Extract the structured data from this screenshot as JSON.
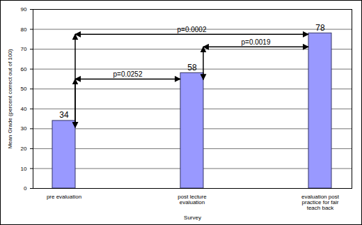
{
  "chart_data": {
    "type": "bar",
    "categories": [
      "pre evaluation",
      "post lecture evaluation",
      "evaluation post practice for fair teach back"
    ],
    "values": [
      34,
      58,
      78
    ],
    "color": "#9999ff",
    "xlabel": "Survey",
    "ylabel": "Mean Grade (percent correct out of 100)",
    "ylim": [
      0,
      90
    ],
    "yticks": [
      0,
      10,
      20,
      30,
      40,
      50,
      60,
      70,
      80,
      90
    ],
    "grid": true,
    "data_labels": true,
    "annotations": [
      {
        "text": "p=0.0252",
        "between": [
          "pre evaluation",
          "post lecture evaluation"
        ]
      },
      {
        "text": "p=0.0019",
        "between": [
          "post lecture evaluation",
          "evaluation post practice for fair teach back"
        ]
      },
      {
        "text": "p=0.0002",
        "between": [
          "pre evaluation",
          "evaluation post practice for fair teach back"
        ]
      }
    ]
  }
}
